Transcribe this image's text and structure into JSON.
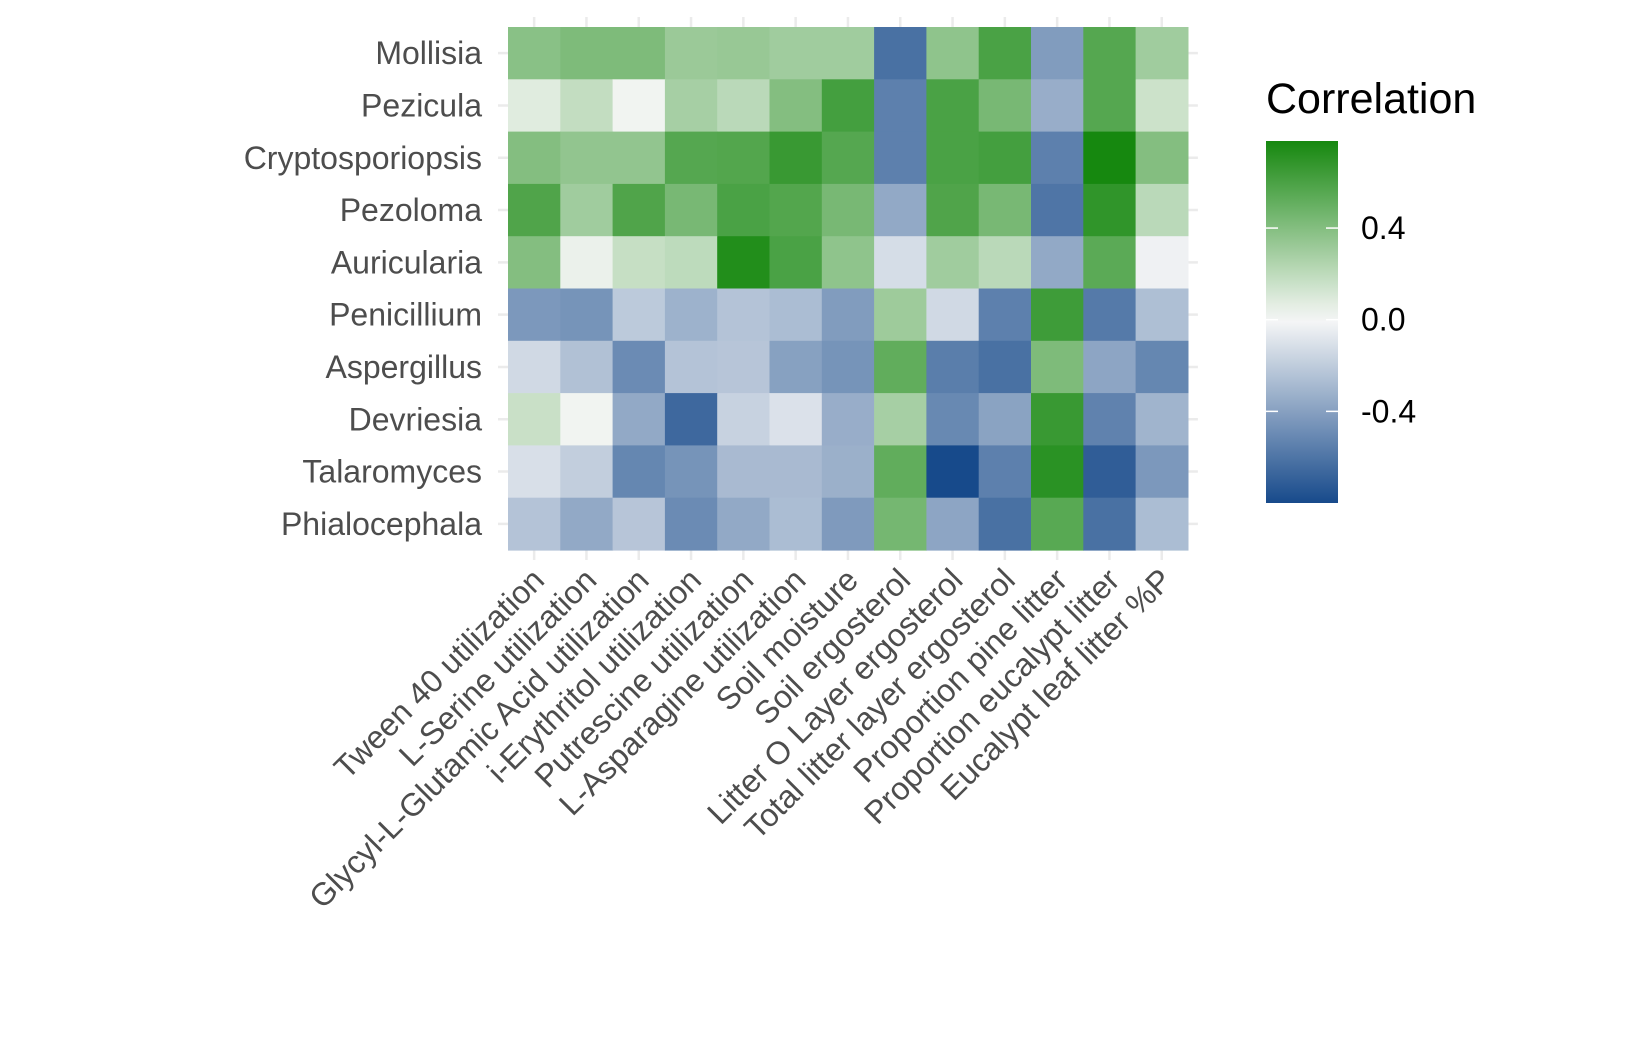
{
  "chart_data": {
    "type": "heatmap",
    "title": "",
    "xlabel": "",
    "ylabel": "",
    "rows": [
      "Mollisia",
      "Pezicula",
      "Cryptosporiopsis",
      "Pezoloma",
      "Auricularia",
      "Penicillium",
      "Aspergillus",
      "Devriesia",
      "Talaromyces",
      "Phialocephala"
    ],
    "columns": [
      "Tween 40 utilization",
      "L-Serine utilization",
      "Glycyl-L-Glutamic Acid utilization",
      "i-Erythritol utilization",
      "Putrescine utilization",
      "L-Asparagine utilization",
      "Soil moisture",
      "Soil ergosterol",
      "Litter O Layer ergosterol",
      "Total litter layer ergosterol",
      "Proportion pine litter",
      "Proportion eucalypt litter",
      "Eucalypt leaf litter %P"
    ],
    "values": [
      [
        0.38,
        0.42,
        0.42,
        0.32,
        0.33,
        0.3,
        0.3,
        -0.62,
        0.36,
        0.6,
        -0.42,
        0.56,
        0.3
      ],
      [
        0.08,
        0.18,
        0.02,
        0.28,
        0.21,
        0.4,
        0.62,
        -0.55,
        0.6,
        0.44,
        -0.34,
        0.56,
        0.15
      ],
      [
        0.4,
        0.35,
        0.35,
        0.56,
        0.57,
        0.66,
        0.56,
        -0.55,
        0.6,
        0.62,
        -0.55,
        0.8,
        0.4
      ],
      [
        0.58,
        0.3,
        0.58,
        0.44,
        0.6,
        0.57,
        0.44,
        -0.36,
        0.58,
        0.44,
        -0.6,
        0.69,
        0.21
      ],
      [
        0.4,
        0.04,
        0.17,
        0.2,
        0.74,
        0.6,
        0.36,
        -0.12,
        0.3,
        0.21,
        -0.36,
        0.54,
        -0.03
      ],
      [
        -0.44,
        -0.46,
        -0.21,
        -0.32,
        -0.24,
        -0.27,
        -0.42,
        0.31,
        -0.14,
        -0.55,
        0.64,
        -0.58,
        -0.26
      ],
      [
        -0.14,
        -0.25,
        -0.5,
        -0.24,
        -0.23,
        -0.4,
        -0.46,
        0.52,
        -0.56,
        -0.62,
        0.42,
        -0.38,
        -0.52
      ],
      [
        0.16,
        0.02,
        -0.36,
        -0.66,
        -0.17,
        -0.1,
        -0.34,
        0.28,
        -0.51,
        -0.39,
        0.66,
        -0.54,
        -0.31
      ],
      [
        -0.11,
        -0.19,
        -0.52,
        -0.46,
        -0.28,
        -0.28,
        -0.33,
        0.52,
        -0.82,
        -0.55,
        0.71,
        -0.71,
        -0.44
      ],
      [
        -0.24,
        -0.36,
        -0.23,
        -0.5,
        -0.36,
        -0.27,
        -0.43,
        0.45,
        -0.38,
        -0.62,
        0.55,
        -0.62,
        -0.27
      ]
    ],
    "legend": {
      "title": "Correlation",
      "ticks": [
        0.4,
        0.0,
        -0.4
      ],
      "tick_labels": [
        "0.4",
        "0.0",
        "-0.4"
      ],
      "range": [
        -0.8,
        0.78
      ],
      "placement": "right"
    },
    "colors": {
      "low": "#174a8b",
      "mid": "#f7f7f7",
      "high": "#16880f"
    },
    "grid": true
  }
}
